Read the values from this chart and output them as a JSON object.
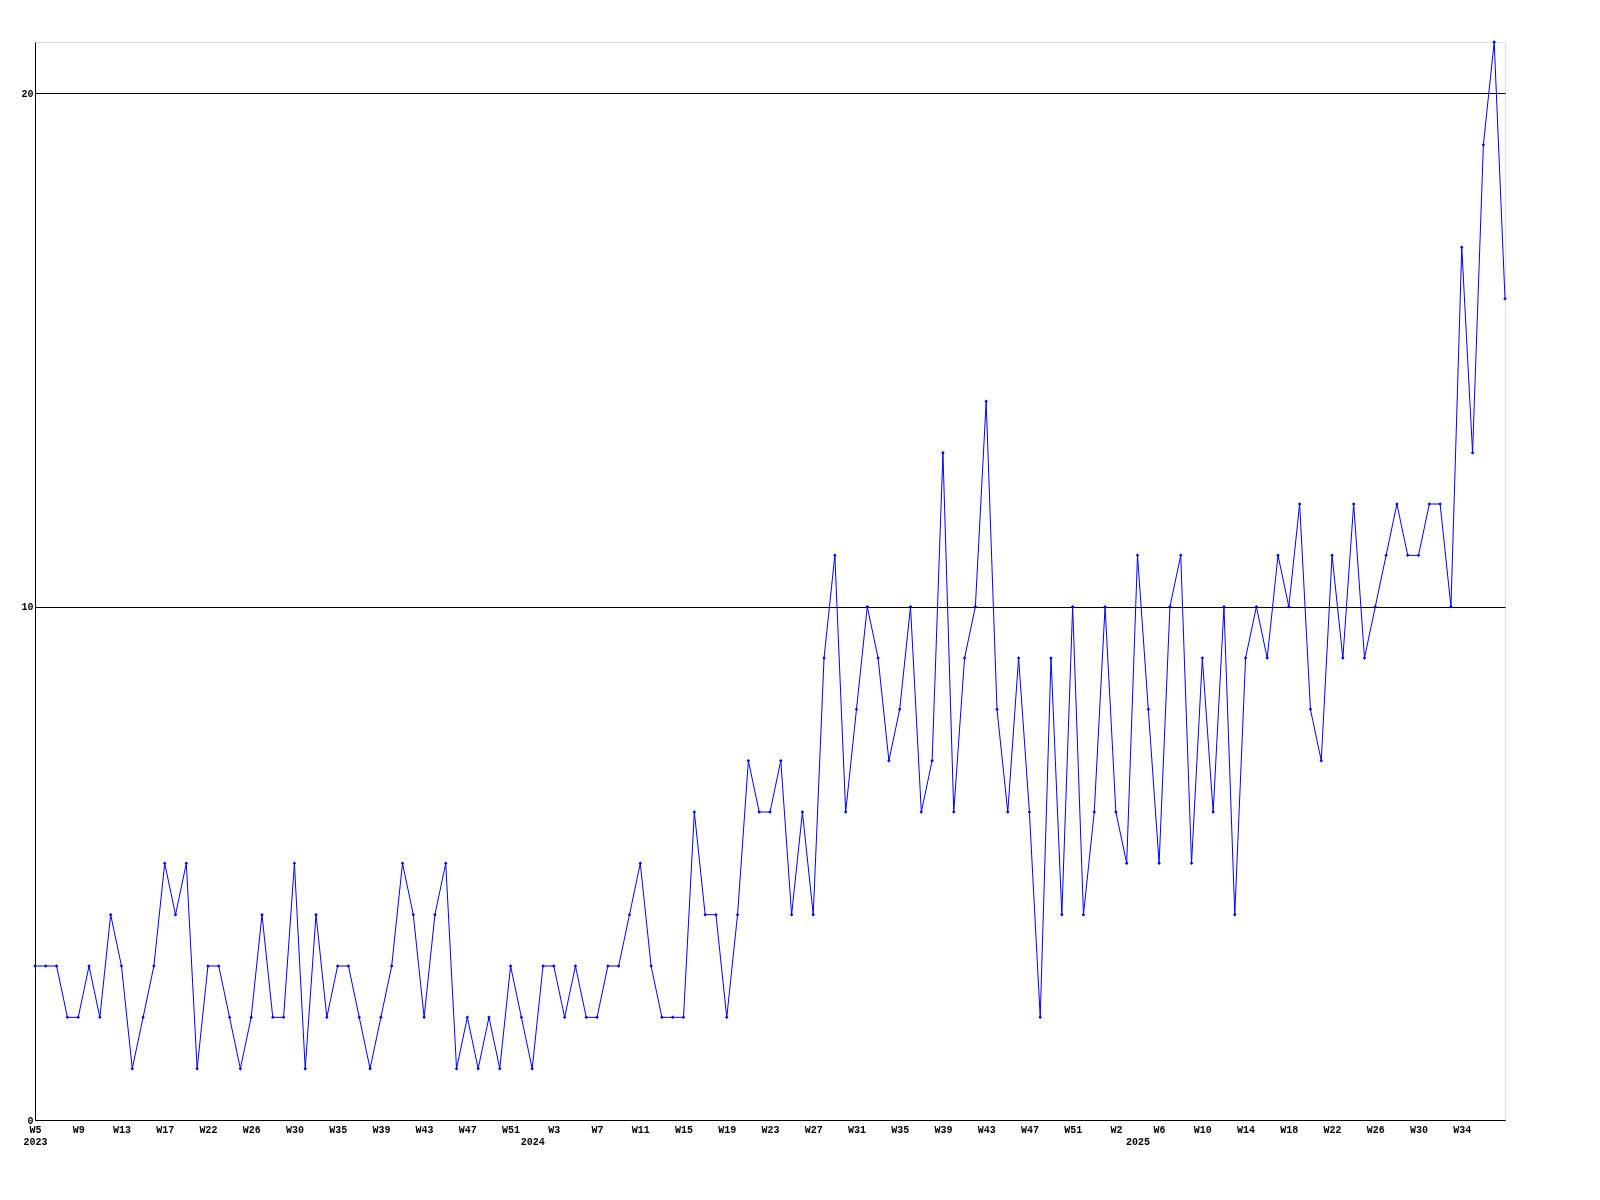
{
  "chart_data": {
    "type": "line",
    "categories": [
      "W5\n2023",
      null,
      null,
      null,
      "W9",
      null,
      null,
      null,
      "W13",
      null,
      null,
      null,
      "W17",
      null,
      null,
      null,
      "W22",
      null,
      null,
      null,
      "W26",
      null,
      null,
      null,
      "W30",
      null,
      null,
      null,
      "W35",
      null,
      null,
      null,
      "W39",
      null,
      null,
      null,
      "W43",
      null,
      null,
      null,
      "W47",
      null,
      null,
      null,
      "W51",
      null,
      "\n2024",
      null,
      "W3",
      null,
      null,
      null,
      "W7",
      null,
      null,
      null,
      "W11",
      null,
      null,
      null,
      "W15",
      null,
      null,
      null,
      "W19",
      null,
      null,
      null,
      "W23",
      null,
      null,
      null,
      "W27",
      null,
      null,
      null,
      "W31",
      null,
      null,
      null,
      "W35",
      null,
      null,
      null,
      "W39",
      null,
      null,
      null,
      "W43",
      null,
      null,
      null,
      "W47",
      null,
      null,
      null,
      "W51",
      null,
      null,
      null,
      "W2",
      null,
      "\n2025",
      null,
      "W6",
      null,
      null,
      null,
      "W10",
      null,
      null,
      null,
      "W14",
      null,
      null,
      null,
      "W18",
      null,
      null,
      null,
      "W22",
      null,
      null,
      null,
      "W26",
      null,
      null,
      null,
      "W30",
      null,
      null,
      null,
      "W34",
      null,
      null,
      null,
      null
    ],
    "series": [
      {
        "color": "#0000ff",
        "values": [
          3,
          3,
          3,
          2,
          2,
          3,
          2,
          4,
          3,
          1,
          2,
          3,
          5,
          4,
          5,
          1,
          3,
          3,
          2,
          1,
          2,
          4,
          2,
          2,
          5,
          1,
          4,
          2,
          3,
          3,
          2,
          1,
          2,
          3,
          5,
          4,
          2,
          4,
          5,
          1,
          2,
          1,
          2,
          1,
          3,
          2,
          1,
          3,
          3,
          2,
          3,
          2,
          2,
          3,
          3,
          4,
          5,
          3,
          2,
          2,
          2,
          6,
          4,
          4,
          2,
          4,
          7,
          6,
          6,
          7,
          4,
          6,
          4,
          9,
          11,
          6,
          8,
          10,
          9,
          7,
          8,
          10,
          6,
          7,
          13,
          6,
          9,
          10,
          14,
          8,
          6,
          9,
          6,
          2,
          9,
          4,
          10,
          4,
          6,
          10,
          6,
          5,
          11,
          8,
          5,
          10,
          11,
          5,
          9,
          6,
          10,
          4,
          9,
          10,
          9,
          11,
          10,
          12,
          8,
          7,
          11,
          9,
          12,
          9,
          10,
          11,
          12,
          11,
          11,
          12,
          12,
          10,
          17,
          13,
          19,
          21,
          16
        ]
      }
    ],
    "ylim": [
      0,
      21
    ],
    "yticks": [
      0,
      10,
      20
    ],
    "grid": "y",
    "marker": "diamond",
    "line_style": "solid"
  }
}
